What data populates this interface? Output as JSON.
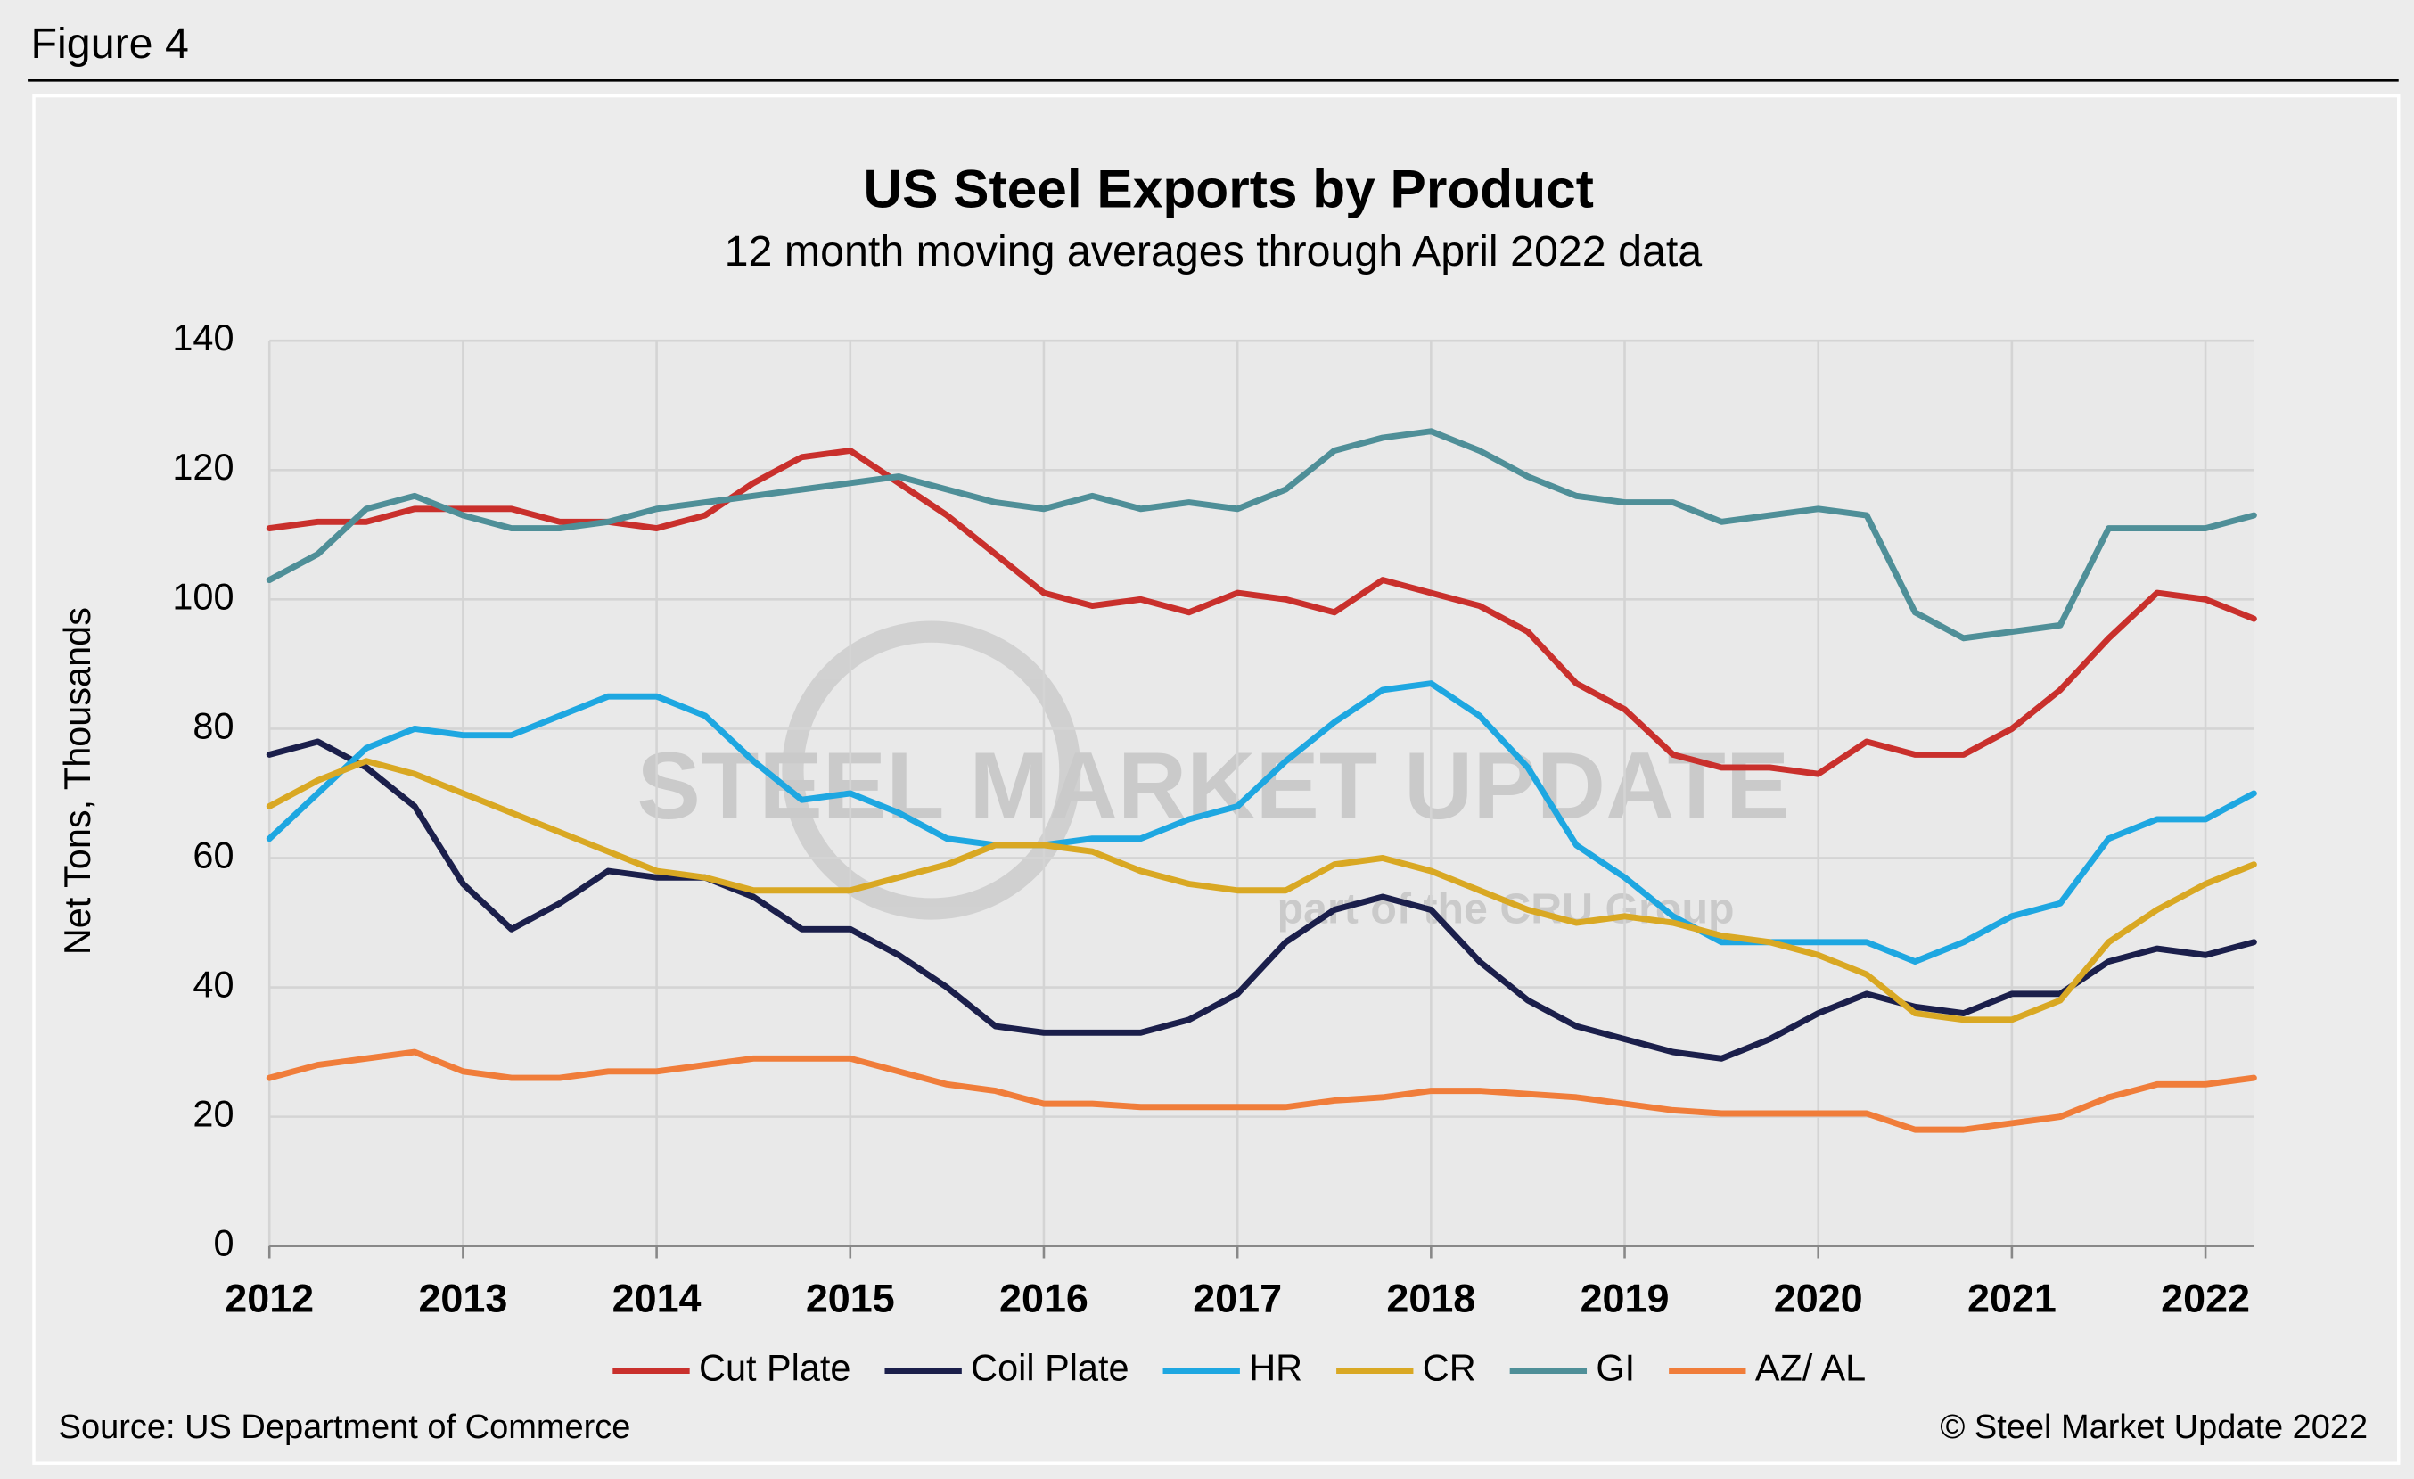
{
  "figure_label": "Figure 4",
  "source": "Source: US Department of Commerce",
  "copyright": "© Steel Market Update 2022",
  "watermark": "STEEL MARKET UPDATE",
  "watermark_sub": "part of the CRU Group",
  "chart_data": {
    "type": "line",
    "title": "US Steel Exports by Product",
    "subtitle": "12 month moving averages through April 2022 data",
    "y_label": "Net Tons, Thousands",
    "x": [
      2012,
      2012.25,
      2012.5,
      2012.75,
      2013,
      2013.25,
      2013.5,
      2013.75,
      2014,
      2014.25,
      2014.5,
      2014.75,
      2015,
      2015.25,
      2015.5,
      2015.75,
      2016,
      2016.25,
      2016.5,
      2016.75,
      2017,
      2017.25,
      2017.5,
      2017.75,
      2018,
      2018.25,
      2018.5,
      2018.75,
      2019,
      2019.25,
      2019.5,
      2019.75,
      2020,
      2020.25,
      2020.5,
      2020.75,
      2021,
      2021.25,
      2021.5,
      2021.75,
      2022,
      2022.25
    ],
    "xlim": [
      2012,
      2022.25
    ],
    "xticks": [
      2012,
      2013,
      2014,
      2015,
      2016,
      2017,
      2018,
      2019,
      2020,
      2021,
      2022
    ],
    "ylim": [
      0,
      140
    ],
    "yticks": [
      0,
      20,
      40,
      60,
      80,
      100,
      120,
      140
    ],
    "grid": true,
    "legend": "bottom",
    "series": [
      {
        "name": "Cut Plate",
        "color": "#c9302c",
        "values": [
          111,
          112,
          112,
          114,
          114,
          114,
          112,
          112,
          111,
          113,
          118,
          122,
          123,
          118,
          113,
          107,
          101,
          99,
          100,
          98,
          101,
          100,
          98,
          103,
          101,
          99,
          95,
          87,
          83,
          76,
          74,
          74,
          73,
          78,
          76,
          76,
          80,
          86,
          94,
          101,
          100,
          97
        ]
      },
      {
        "name": "Coil Plate",
        "color": "#1b1f4b",
        "values": [
          76,
          78,
          74,
          68,
          56,
          49,
          53,
          58,
          57,
          57,
          54,
          49,
          49,
          45,
          40,
          34,
          33,
          33,
          33,
          35,
          39,
          47,
          52,
          54,
          52,
          44,
          38,
          34,
          32,
          30,
          29,
          32,
          36,
          39,
          37,
          36,
          39,
          39,
          44,
          46,
          45,
          47
        ]
      },
      {
        "name": "HR",
        "color": "#1ea7e1",
        "values": [
          63,
          70,
          77,
          80,
          79,
          79,
          82,
          85,
          85,
          82,
          75,
          69,
          70,
          67,
          63,
          62,
          62,
          63,
          63,
          66,
          68,
          75,
          81,
          86,
          87,
          82,
          74,
          62,
          57,
          51,
          47,
          47,
          47,
          47,
          44,
          47,
          51,
          53,
          63,
          66,
          66,
          70
        ]
      },
      {
        "name": "CR",
        "color": "#d9a823",
        "values": [
          68,
          72,
          75,
          73,
          70,
          67,
          64,
          61,
          58,
          57,
          55,
          55,
          55,
          57,
          59,
          62,
          62,
          61,
          58,
          56,
          55,
          55,
          59,
          60,
          58,
          55,
          52,
          50,
          51,
          50,
          48,
          47,
          45,
          42,
          36,
          35,
          35,
          38,
          47,
          52,
          56,
          59
        ]
      },
      {
        "name": "GI",
        "color": "#4f8f98",
        "values": [
          103,
          107,
          114,
          116,
          113,
          111,
          111,
          112,
          114,
          115,
          116,
          117,
          118,
          119,
          117,
          115,
          114,
          116,
          114,
          115,
          114,
          117,
          123,
          125,
          126,
          123,
          119,
          116,
          115,
          115,
          112,
          113,
          114,
          113,
          98,
          94,
          95,
          96,
          111,
          111,
          111,
          113
        ]
      },
      {
        "name": "AZ/ AL",
        "color": "#f07d3a",
        "values": [
          26,
          28,
          29,
          30,
          27,
          26,
          26,
          27,
          27,
          28,
          29,
          29,
          29,
          27,
          25,
          24,
          22,
          22,
          21.5,
          21.5,
          21.5,
          21.5,
          22.5,
          23,
          24,
          24,
          23.5,
          23,
          22,
          21,
          20.5,
          20.5,
          20.5,
          20.5,
          18,
          18,
          19,
          20,
          23,
          25,
          25,
          26
        ]
      }
    ]
  }
}
